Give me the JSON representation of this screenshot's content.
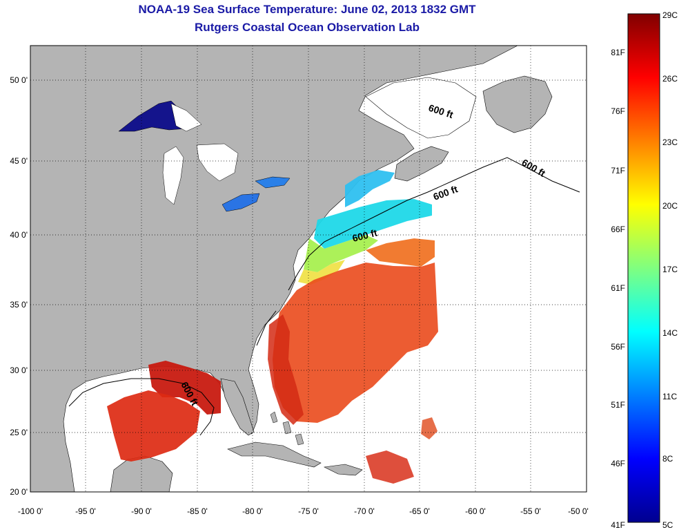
{
  "title": "NOAA-19 Sea Surface Temperature:  June 02, 2013 1832 GMT",
  "subtitle": "Rutgers Coastal Ocean Observation Lab",
  "map": {
    "lon_range": [
      -100,
      -50
    ],
    "lat_range": [
      20,
      52
    ],
    "x_ticks": [
      "-100 0'",
      "-95 0'",
      "-90 0'",
      "-85 0'",
      "-80 0'",
      "-75 0'",
      "-70 0'",
      "-65 0'",
      "-60 0'",
      "-55 0'",
      "-50 0'"
    ],
    "y_ticks": [
      "50 0'",
      "45 0'",
      "40 0'",
      "35 0'",
      "30 0'",
      "25 0'",
      "20 0'"
    ],
    "grid": "dotted",
    "land_color": "#b4b4b4",
    "ocean_color": "#ffffff",
    "contour_label": "600 ft"
  },
  "colorbar": {
    "min_c": 5,
    "max_c": 29,
    "celsius_labels": [
      "29C",
      "26C",
      "23C",
      "20C",
      "17C",
      "14C",
      "11C",
      "8C",
      "5C"
    ],
    "fahrenheit_labels": [
      "81F",
      "76F",
      "71F",
      "66F",
      "61F",
      "56F",
      "51F",
      "46F",
      "41F"
    ],
    "colormap": "jet"
  }
}
